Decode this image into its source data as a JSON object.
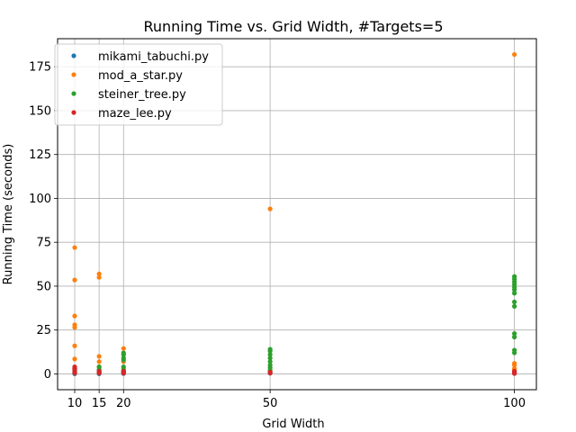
{
  "chart_data": {
    "type": "scatter",
    "title": "Running Time vs. Grid Width, #Targets=5",
    "xlabel": "Grid Width",
    "ylabel": "Running Time (seconds)",
    "xlim": [
      6.5,
      104.5
    ],
    "ylim": [
      -9,
      191
    ],
    "xticks": [
      10,
      15,
      20,
      50,
      100
    ],
    "yticks": [
      0,
      25,
      50,
      75,
      100,
      125,
      150,
      175
    ],
    "grid": "x-major and y-major",
    "legend_position": "upper-left",
    "colors": {
      "mikami_tabuchi.py": "#1f77b4",
      "mod_a_star.py": "#ff7f0e",
      "steiner_tree.py": "#2ca02c",
      "maze_lee.py": "#d62728"
    },
    "series": [
      {
        "name": "mikami_tabuchi.py",
        "points": [
          [
            10,
            0.1
          ],
          [
            10,
            0.2
          ],
          [
            10,
            0.3
          ],
          [
            15,
            0.1
          ],
          [
            15,
            0.2
          ],
          [
            20,
            0.2
          ],
          [
            20,
            0.3
          ],
          [
            50,
            0.4
          ],
          [
            50,
            0.6
          ],
          [
            100,
            0.6
          ],
          [
            100,
            0.9
          ]
        ]
      },
      {
        "name": "mod_a_star.py",
        "points": [
          [
            10,
            72
          ],
          [
            10,
            53.5
          ],
          [
            10,
            33
          ],
          [
            10,
            28
          ],
          [
            10,
            26.5
          ],
          [
            10,
            16
          ],
          [
            10,
            8.5
          ],
          [
            10,
            3
          ],
          [
            10,
            1.5
          ],
          [
            15,
            57
          ],
          [
            15,
            55
          ],
          [
            15,
            10
          ],
          [
            15,
            7
          ],
          [
            15,
            4
          ],
          [
            15,
            2
          ],
          [
            20,
            14.5
          ],
          [
            20,
            11
          ],
          [
            20,
            7
          ],
          [
            20,
            3
          ],
          [
            20,
            1.5
          ],
          [
            50,
            94
          ],
          [
            50,
            2
          ],
          [
            100,
            182
          ],
          [
            100,
            6
          ],
          [
            100,
            5
          ],
          [
            100,
            3
          ],
          [
            100,
            2
          ]
        ]
      },
      {
        "name": "steiner_tree.py",
        "points": [
          [
            10,
            3
          ],
          [
            10,
            2
          ],
          [
            10,
            1
          ],
          [
            10,
            0.5
          ],
          [
            15,
            4
          ],
          [
            15,
            2.5
          ],
          [
            15,
            1.5
          ],
          [
            15,
            1
          ],
          [
            20,
            12
          ],
          [
            20,
            11
          ],
          [
            20,
            9
          ],
          [
            20,
            8
          ],
          [
            20,
            4
          ],
          [
            20,
            2
          ],
          [
            20,
            1
          ],
          [
            50,
            14
          ],
          [
            50,
            13
          ],
          [
            50,
            11
          ],
          [
            50,
            9
          ],
          [
            50,
            7
          ],
          [
            50,
            5
          ],
          [
            50,
            3.5
          ],
          [
            50,
            2
          ],
          [
            100,
            55.5
          ],
          [
            100,
            54
          ],
          [
            100,
            52.5
          ],
          [
            100,
            51
          ],
          [
            100,
            49.5
          ],
          [
            100,
            48
          ],
          [
            100,
            46
          ],
          [
            100,
            41
          ],
          [
            100,
            38.5
          ],
          [
            100,
            23
          ],
          [
            100,
            21
          ],
          [
            100,
            13.5
          ],
          [
            100,
            12
          ]
        ]
      },
      {
        "name": "maze_lee.py",
        "points": [
          [
            10,
            4
          ],
          [
            10,
            3
          ],
          [
            10,
            2
          ],
          [
            10,
            1
          ],
          [
            10,
            0.5
          ],
          [
            15,
            1.5
          ],
          [
            15,
            1
          ],
          [
            15,
            0.5
          ],
          [
            20,
            1.5
          ],
          [
            20,
            1
          ],
          [
            20,
            0.5
          ],
          [
            50,
            1
          ],
          [
            50,
            0.5
          ],
          [
            100,
            1.5
          ],
          [
            100,
            1
          ],
          [
            100,
            0.5
          ],
          [
            100,
            0.2
          ]
        ]
      }
    ]
  }
}
